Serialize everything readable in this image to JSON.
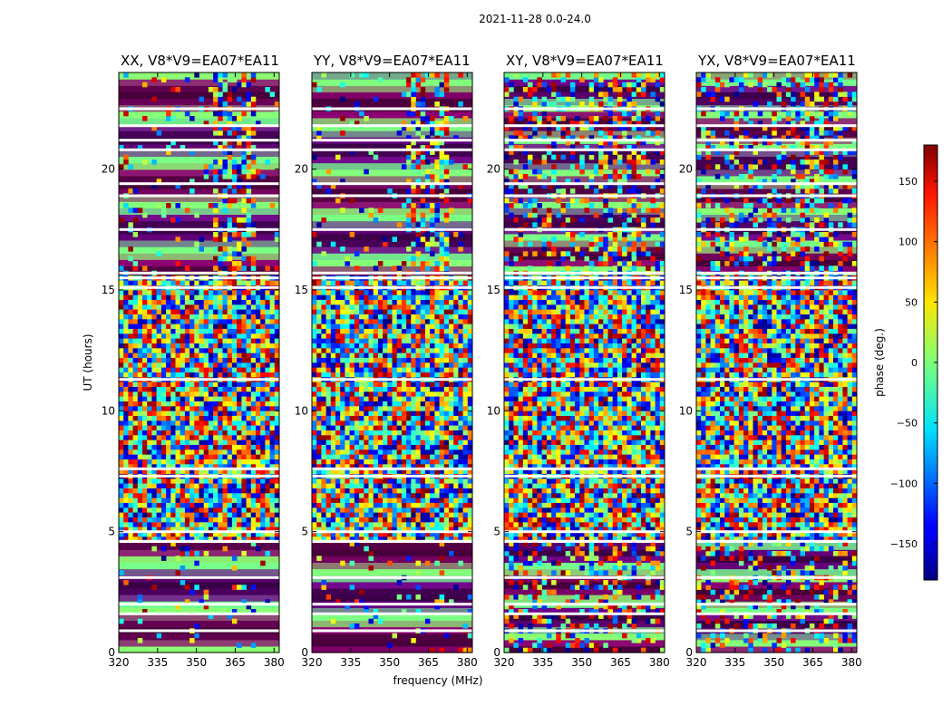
{
  "chart_data": {
    "type": "heatmap",
    "title": "2021-11-28 0.0-24.0",
    "xlabel": "frequency (MHz)",
    "ylabel": "UT (hours)",
    "xlim": [
      320,
      382
    ],
    "ylim": [
      0,
      24
    ],
    "x_ticks": [
      320,
      335,
      350,
      365,
      380
    ],
    "y_ticks": [
      0,
      5,
      10,
      15,
      20
    ],
    "panels": [
      {
        "name": "XX",
        "title": "XX, V8*V9=EA07*EA11"
      },
      {
        "name": "YY",
        "title": "YY, V8*V9=EA07*EA11"
      },
      {
        "name": "XY",
        "title": "XY, V8*V9=EA07*EA11"
      },
      {
        "name": "YX",
        "title": "YX, V8*V9=EA07*EA11"
      }
    ],
    "colorbar": {
      "label": "phase (deg.)",
      "range": [
        -180,
        180
      ],
      "ticks": [
        150,
        100,
        50,
        0,
        -50,
        -100,
        -150
      ],
      "tick_labels": [
        "150",
        "100",
        "50",
        "0",
        "−50",
        "−100",
        "−150"
      ]
    },
    "flagged_ut_hours": [
      0.9,
      1.6,
      2.0,
      3.1,
      4.6,
      5.0,
      7.3,
      7.6,
      11.3,
      15.1,
      15.5,
      15.7,
      17.5,
      18.9,
      19.4,
      20.8,
      21.2,
      21.8,
      22.5
    ]
  }
}
